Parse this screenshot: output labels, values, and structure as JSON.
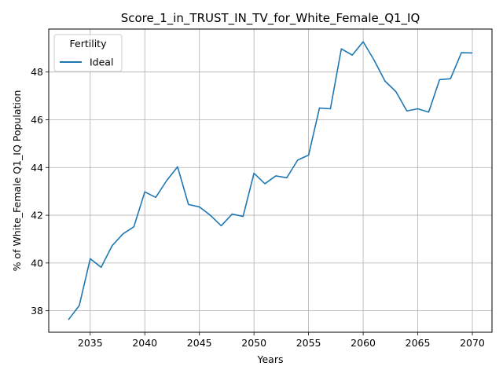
{
  "chart_data": {
    "type": "line",
    "title": "Score_1_in_TRUST_IN_TV_for_White_Female_Q1_IQ",
    "xlabel": "Years",
    "ylabel": "% of White_Female Q1_IQ Population",
    "xlim": [
      2031.2,
      2071.8
    ],
    "ylim": [
      37.1,
      49.8
    ],
    "xticks": [
      2035,
      2040,
      2045,
      2050,
      2055,
      2060,
      2065,
      2070
    ],
    "yticks": [
      38,
      40,
      42,
      44,
      46,
      48
    ],
    "grid": true,
    "legend": {
      "title": "Fertility",
      "placement": "top-left"
    },
    "series": [
      {
        "name": "Ideal",
        "color": "#1f77b4",
        "x": [
          2033,
          2034,
          2035,
          2036,
          2037,
          2038,
          2039,
          2040,
          2041,
          2042,
          2043,
          2044,
          2045,
          2046,
          2047,
          2048,
          2049,
          2050,
          2051,
          2052,
          2053,
          2054,
          2055,
          2056,
          2057,
          2058,
          2059,
          2060,
          2061,
          2062,
          2063,
          2064,
          2065,
          2066,
          2067,
          2068,
          2069,
          2070
        ],
        "y": [
          37.62,
          38.22,
          40.18,
          39.82,
          40.72,
          41.22,
          41.52,
          42.98,
          42.75,
          43.45,
          44.03,
          42.45,
          42.35,
          42.0,
          41.56,
          42.05,
          41.95,
          43.76,
          43.32,
          43.65,
          43.57,
          44.31,
          44.52,
          46.49,
          46.46,
          48.97,
          48.71,
          49.27,
          48.5,
          47.62,
          47.18,
          46.37,
          46.46,
          46.32,
          47.68,
          47.72,
          48.81,
          48.8
        ]
      }
    ]
  }
}
